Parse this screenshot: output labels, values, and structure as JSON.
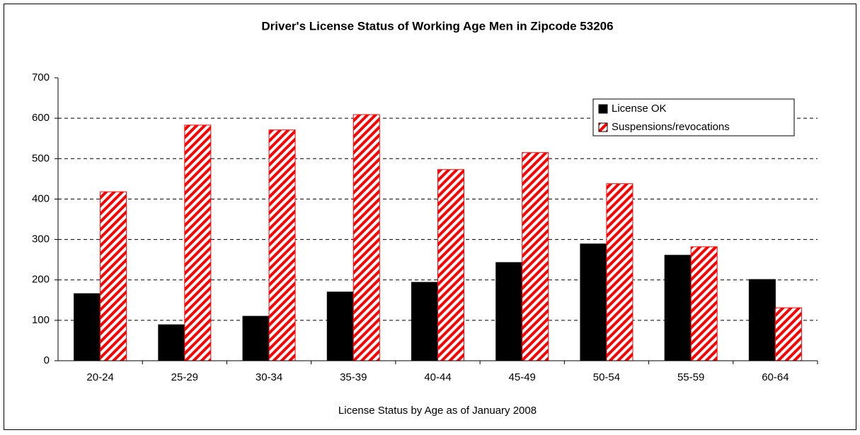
{
  "chart_data": {
    "type": "bar",
    "title": "Driver's License Status of Working Age Men in Zipcode 53206",
    "x_label": "License Status by Age as of January 2008",
    "categories": [
      "20-24",
      "25-29",
      "30-34",
      "35-39",
      "40-44",
      "45-49",
      "50-54",
      "55-59",
      "60-64"
    ],
    "series": [
      {
        "name": "License OK",
        "color": "#000000",
        "pattern": "solid",
        "values": [
          166,
          89,
          110,
          170,
          194,
          243,
          289,
          261,
          201
        ]
      },
      {
        "name": "Suspensions/revocations",
        "color": "#ff0000",
        "pattern": "hatch",
        "values": [
          418,
          583,
          571,
          609,
          473,
          515,
          438,
          282,
          131
        ]
      }
    ],
    "ylim": [
      0,
      700
    ],
    "yticks": [
      0,
      100,
      200,
      300,
      400,
      500,
      600,
      700
    ],
    "grid": true,
    "legend": "top-right"
  }
}
